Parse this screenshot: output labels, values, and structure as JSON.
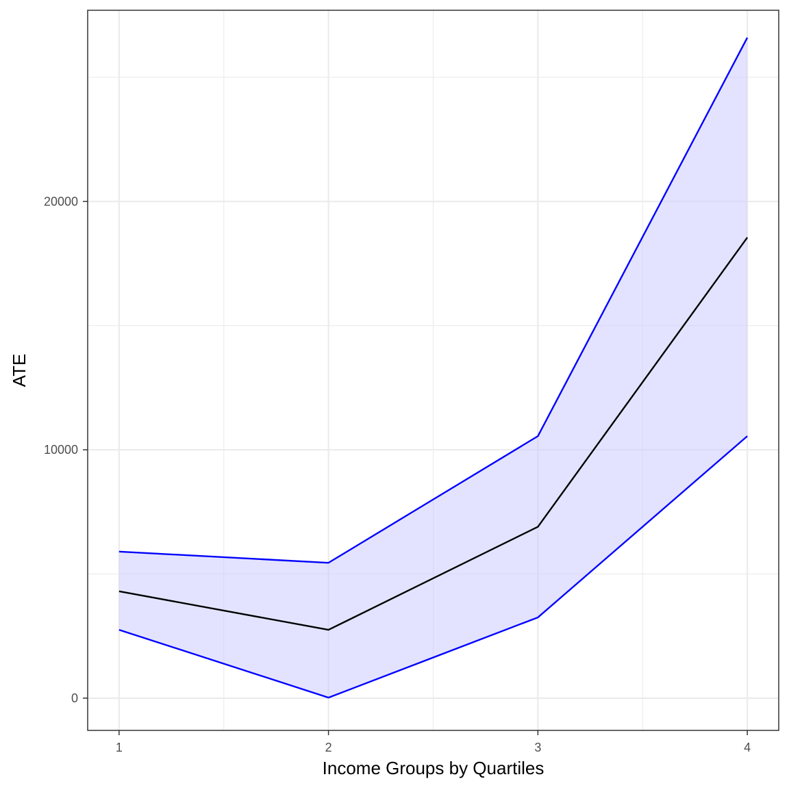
{
  "chart_data": {
    "type": "line",
    "xlabel": "Income Groups by Quartiles",
    "ylabel": "ATE",
    "x": [
      1,
      2,
      3,
      4
    ],
    "x_ticks": [
      1,
      2,
      3,
      4
    ],
    "y_ticks": [
      0,
      10000,
      20000
    ],
    "xlim": [
      0.85,
      4.15
    ],
    "ylim": [
      -1300,
      27700
    ],
    "grid": true,
    "series": [
      {
        "role": "estimate",
        "color": "#000000",
        "values": [
          4300,
          2750,
          6900,
          18550
        ]
      },
      {
        "role": "upper_bound",
        "color": "#0000ff",
        "values": [
          5900,
          5450,
          10550,
          26600
        ]
      },
      {
        "role": "lower_bound",
        "color": "#0000ff",
        "values": [
          2750,
          20,
          3250,
          10550
        ]
      }
    ],
    "ribbon": {
      "fill": "#ccccff",
      "opacity": 0.55
    },
    "colors": {
      "panel_border": "#333333",
      "grid": "#ebebeb",
      "background": "#ffffff"
    }
  }
}
